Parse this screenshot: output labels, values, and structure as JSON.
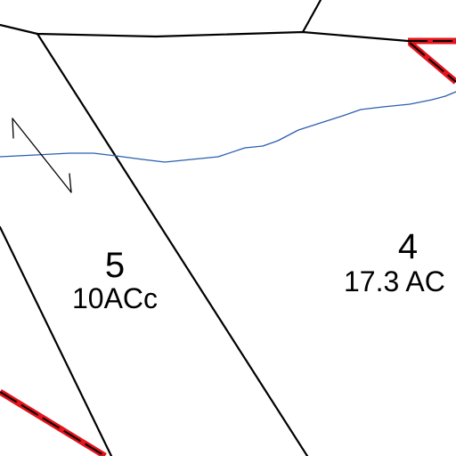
{
  "map": {
    "colors": {
      "background": "#ffffff",
      "parcel_line": "#000000",
      "boundary": "#e3141b",
      "stream": "#2a5fb0"
    },
    "lots": [
      {
        "number": "5",
        "area": "10ACc"
      },
      {
        "number": "4",
        "area": "17.3 AC"
      }
    ],
    "symbols": [
      "north-arrow-icon"
    ]
  }
}
